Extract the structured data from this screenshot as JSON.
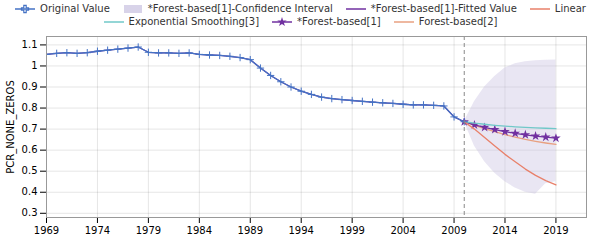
{
  "chart_data": {
    "type": "line",
    "ylabel": "PCR_NONE_ZEROS",
    "xlim": [
      1969,
      2022
    ],
    "ylim": [
      0.28,
      1.14
    ],
    "xticks": [
      1969,
      1974,
      1979,
      1984,
      1989,
      1994,
      1999,
      2004,
      2009,
      2014,
      2019
    ],
    "yticks": [
      0.3,
      0.4,
      0.5,
      0.6,
      0.7,
      0.8,
      0.9,
      1,
      1.1
    ],
    "grid": true,
    "legend": "top",
    "vlines": [
      2010
    ],
    "series": [
      {
        "name": "Original Value",
        "color": "#4472c4",
        "marker": "plus",
        "x": [
          1969,
          1970,
          1971,
          1972,
          1973,
          1974,
          1975,
          1976,
          1977,
          1978,
          1979,
          1980,
          1981,
          1982,
          1983,
          1984,
          1985,
          1986,
          1987,
          1988,
          1989,
          1990,
          1991,
          1992,
          1993,
          1994,
          1995,
          1996,
          1997,
          1998,
          1999,
          2000,
          2001,
          2002,
          2003,
          2004,
          2005,
          2006,
          2007,
          2008,
          2009,
          2010
        ],
        "values": [
          1.055,
          1.06,
          1.063,
          1.06,
          1.063,
          1.07,
          1.075,
          1.08,
          1.085,
          1.09,
          1.065,
          1.062,
          1.062,
          1.06,
          1.062,
          1.055,
          1.052,
          1.05,
          1.046,
          1.04,
          1.03,
          0.99,
          0.955,
          0.925,
          0.9,
          0.88,
          0.865,
          0.852,
          0.845,
          0.84,
          0.836,
          0.832,
          0.828,
          0.825,
          0.822,
          0.818,
          0.815,
          0.815,
          0.813,
          0.81,
          0.758,
          0.735
        ]
      },
      {
        "name": "*Forest-based[1]-Confidence Interval",
        "type": "area",
        "color": "#c8c0e0",
        "x": [
          2010,
          2011,
          2012,
          2013,
          2014,
          2015,
          2016,
          2017,
          2018,
          2019
        ],
        "lower": [
          0.735,
          0.62,
          0.545,
          0.49,
          0.45,
          0.42,
          0.4,
          0.39,
          0.44,
          0.45
        ],
        "upper": [
          0.735,
          0.83,
          0.9,
          0.95,
          0.99,
          1.01,
          1.02,
          1.025,
          1.027,
          1.028
        ]
      },
      {
        "name": "*Forest-based[1]-Fitted Value",
        "color": "#7030a0",
        "x": [
          1969,
          1970,
          1971,
          1972,
          1973,
          1974,
          1975,
          1976,
          1977,
          1978,
          1979,
          1980,
          1981,
          1982,
          1983,
          1984,
          1985,
          1986,
          1987,
          1988,
          1989,
          1990,
          1991,
          1992,
          1993,
          1994,
          1995,
          1996,
          1997,
          1998,
          1999,
          2000,
          2001,
          2002,
          2003,
          2004,
          2005,
          2006,
          2007,
          2008,
          2009,
          2010
        ],
        "values": [
          1.055,
          1.06,
          1.063,
          1.06,
          1.063,
          1.07,
          1.075,
          1.08,
          1.085,
          1.09,
          1.065,
          1.062,
          1.062,
          1.06,
          1.062,
          1.055,
          1.052,
          1.05,
          1.046,
          1.04,
          1.03,
          0.99,
          0.955,
          0.925,
          0.9,
          0.88,
          0.865,
          0.852,
          0.845,
          0.84,
          0.836,
          0.832,
          0.828,
          0.825,
          0.822,
          0.818,
          0.815,
          0.815,
          0.813,
          0.81,
          0.758,
          0.735
        ]
      },
      {
        "name": "Linear",
        "color": "#e8806a",
        "x": [
          2010,
          2011,
          2012,
          2013,
          2014,
          2015,
          2016,
          2017,
          2018,
          2019
        ],
        "values": [
          0.735,
          0.7,
          0.66,
          0.62,
          0.58,
          0.545,
          0.51,
          0.48,
          0.455,
          0.435
        ]
      },
      {
        "name": "Exponential Smoothing[3]",
        "color": "#70c8c8",
        "x": [
          2010,
          2011,
          2012,
          2013,
          2014,
          2015,
          2016,
          2017,
          2018,
          2019
        ],
        "values": [
          0.735,
          0.728,
          0.723,
          0.718,
          0.714,
          0.711,
          0.708,
          0.706,
          0.704,
          0.702
        ]
      },
      {
        "name": "*Forest-based[1]",
        "color": "#7030a0",
        "marker": "star",
        "x": [
          2010,
          2011,
          2012,
          2013,
          2014,
          2015,
          2016,
          2017,
          2018,
          2019
        ],
        "values": [
          0.735,
          0.72,
          0.708,
          0.698,
          0.688,
          0.68,
          0.673,
          0.667,
          0.662,
          0.657
        ]
      },
      {
        "name": "Forest-based[2]",
        "color": "#e8a080",
        "x": [
          2010,
          2011,
          2012,
          2013,
          2014,
          2015,
          2016,
          2017,
          2018,
          2019
        ],
        "values": [
          0.735,
          0.718,
          0.702,
          0.688,
          0.674,
          0.662,
          0.651,
          0.642,
          0.634,
          0.627
        ]
      }
    ]
  }
}
